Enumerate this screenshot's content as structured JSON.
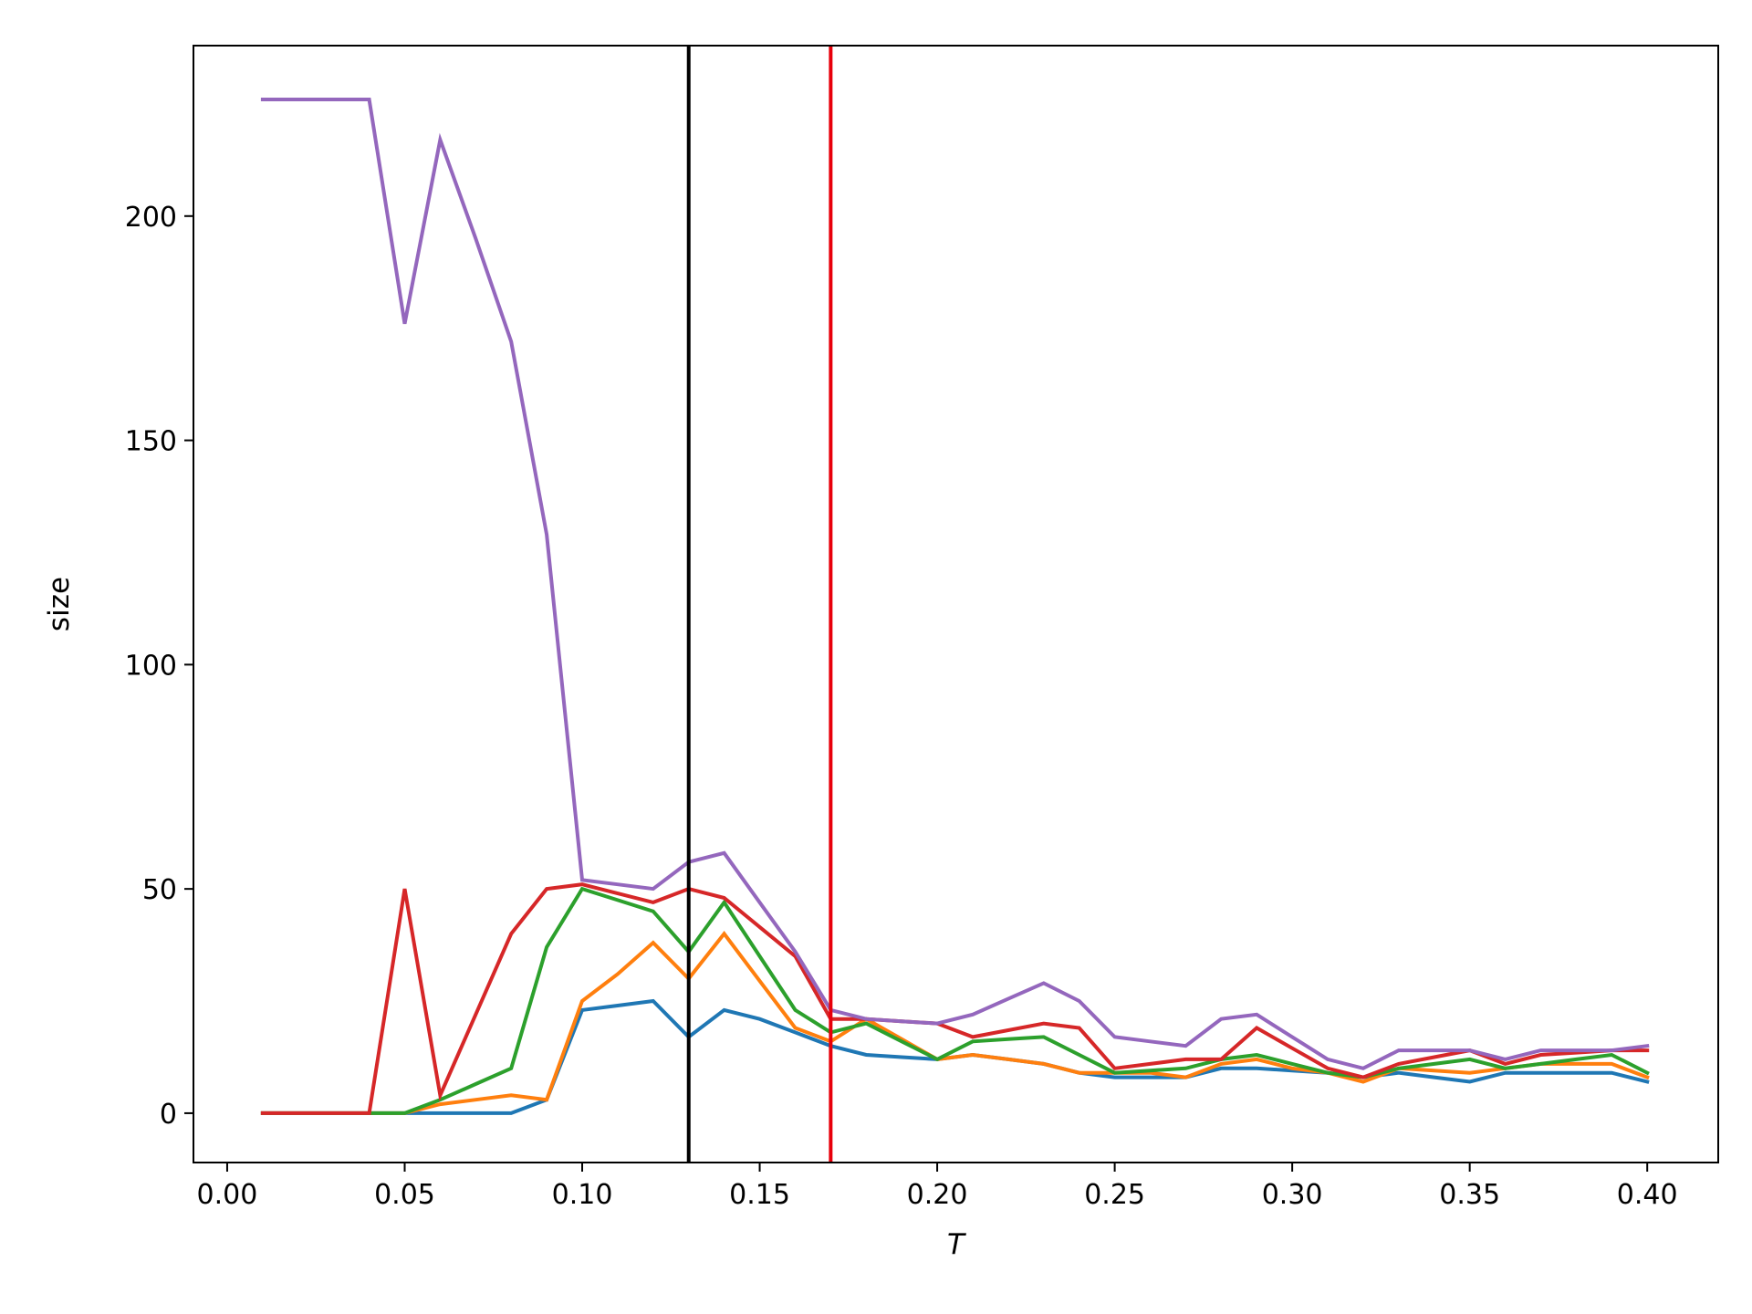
{
  "chart_data": {
    "type": "line",
    "title": "",
    "xlabel": "T",
    "ylabel": "size",
    "xlim": [
      -0.0095,
      0.42
    ],
    "ylim": [
      -11,
      238
    ],
    "xticks": [
      0.0,
      0.05,
      0.1,
      0.15,
      0.2,
      0.25,
      0.3,
      0.35,
      0.4
    ],
    "xtick_labels": [
      "0.00",
      "0.05",
      "0.10",
      "0.15",
      "0.20",
      "0.25",
      "0.30",
      "0.35",
      "0.40"
    ],
    "yticks": [
      0,
      50,
      100,
      150,
      200
    ],
    "ytick_labels": [
      "0",
      "50",
      "100",
      "150",
      "200"
    ],
    "grid": false,
    "legend": "none",
    "vlines": [
      {
        "x": 0.13,
        "color": "#000000"
      },
      {
        "x": 0.17,
        "color": "#e8000b"
      }
    ],
    "x": [
      0.01,
      0.02,
      0.03,
      0.04,
      0.05,
      0.06,
      0.07,
      0.08,
      0.09,
      0.1,
      0.11,
      0.12,
      0.13,
      0.14,
      0.15,
      0.16,
      0.17,
      0.18,
      0.19,
      0.2,
      0.21,
      0.22,
      0.23,
      0.24,
      0.25,
      0.26,
      0.27,
      0.28,
      0.29,
      0.3,
      0.31,
      0.32,
      0.33,
      0.34,
      0.35,
      0.36,
      0.37,
      0.38,
      0.39,
      0.4
    ],
    "series": [
      {
        "color": "#1f77b4",
        "values": [
          0,
          0,
          0,
          0,
          0,
          0,
          0,
          0,
          3,
          23,
          24,
          25,
          17,
          23,
          21,
          18,
          15,
          13,
          12.5,
          12,
          13,
          12,
          11,
          9,
          8,
          8,
          8,
          10,
          10,
          9.5,
          9,
          8,
          9,
          8,
          7,
          9,
          9,
          9,
          9,
          7
        ]
      },
      {
        "color": "#ff7f0e",
        "values": [
          0,
          0,
          0,
          0,
          0,
          2,
          3,
          4,
          3,
          25,
          31,
          38,
          30,
          40,
          29.5,
          19,
          16,
          21,
          16.5,
          12,
          13,
          12,
          11,
          9,
          9,
          9,
          8,
          11,
          12,
          10,
          9,
          7,
          10,
          9.5,
          9,
          10,
          11,
          11,
          11,
          8
        ]
      },
      {
        "color": "#2ca02c",
        "values": [
          0,
          0,
          0,
          0,
          0,
          3,
          6.5,
          10,
          37,
          50,
          47.5,
          45,
          36,
          47,
          35,
          23,
          18,
          20,
          16,
          12,
          16,
          16.5,
          17,
          13,
          9,
          9.5,
          10,
          12,
          13,
          11,
          9,
          8,
          10,
          11,
          12,
          10,
          11,
          12,
          13,
          9
        ]
      },
      {
        "color": "#d62728",
        "values": [
          0,
          0,
          0,
          0,
          50,
          4,
          22,
          40,
          50,
          51,
          49,
          47,
          50,
          48,
          41.5,
          35,
          21,
          21,
          20.5,
          20,
          17,
          18.5,
          20,
          19,
          10,
          11,
          12,
          12,
          19,
          14.5,
          10,
          8,
          11,
          12.5,
          14,
          11,
          13,
          13.5,
          14,
          14
        ]
      },
      {
        "color": "#9467bd",
        "values": [
          226,
          226,
          226,
          226,
          176,
          217,
          195,
          172,
          129,
          52,
          51,
          50,
          56,
          58,
          47,
          36,
          23,
          21,
          20.5,
          20,
          22,
          25.5,
          29,
          25,
          17,
          16,
          15,
          21,
          22,
          17,
          12,
          10,
          14,
          14,
          14,
          12,
          14,
          14,
          14,
          15
        ]
      }
    ]
  }
}
